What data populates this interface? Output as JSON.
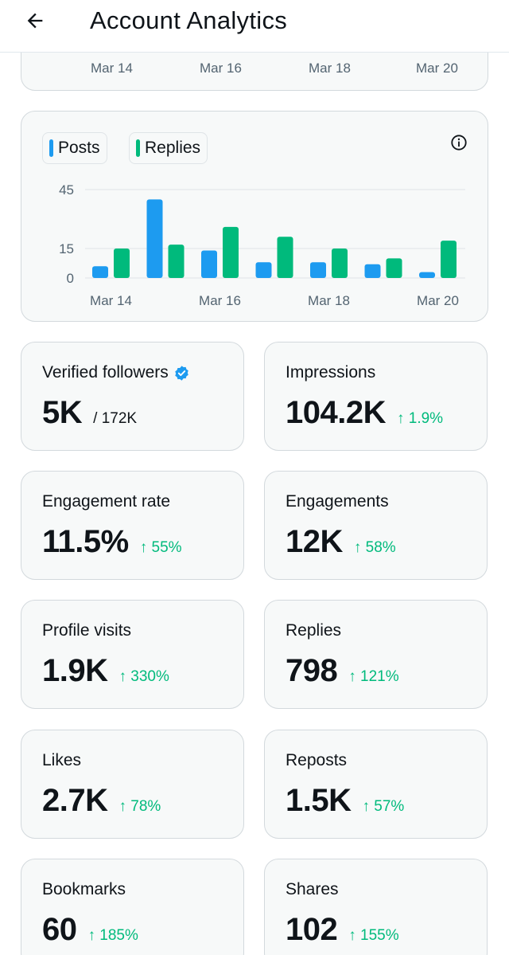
{
  "header": {
    "title": "Account Analytics"
  },
  "top_chart_axis": [
    "Mar 14",
    "Mar 16",
    "Mar 18",
    "Mar 20"
  ],
  "legend": [
    {
      "label": "Posts",
      "color": "#1d9bf0"
    },
    {
      "label": "Replies",
      "color": "#00ba7c"
    }
  ],
  "chart_data": {
    "type": "bar",
    "categories": [
      "Mar 14",
      "Mar 15",
      "Mar 16",
      "Mar 17",
      "Mar 18",
      "Mar 19",
      "Mar 20"
    ],
    "x_tick_labels": [
      "Mar 14",
      "Mar 16",
      "Mar 18",
      "Mar 20"
    ],
    "series": [
      {
        "name": "Posts",
        "color": "#1d9bf0",
        "values": [
          6,
          40,
          14,
          8,
          8,
          7,
          3
        ]
      },
      {
        "name": "Replies",
        "color": "#00ba7c",
        "values": [
          15,
          17,
          26,
          21,
          15,
          10,
          19
        ]
      }
    ],
    "y_ticks": [
      0,
      15,
      45
    ],
    "ylim": [
      0,
      45
    ],
    "grid": true
  },
  "metrics": [
    {
      "title": "Verified followers",
      "value": "5K",
      "sub": "/ 172K",
      "change": "",
      "verified": true
    },
    {
      "title": "Impressions",
      "value": "104.2K",
      "sub": "",
      "change": "↑ 1.9%",
      "verified": false
    },
    {
      "title": "Engagement rate",
      "value": "11.5%",
      "sub": "",
      "change": "↑ 55%",
      "verified": false
    },
    {
      "title": "Engagements",
      "value": "12K",
      "sub": "",
      "change": "↑ 58%",
      "verified": false
    },
    {
      "title": "Profile visits",
      "value": "1.9K",
      "sub": "",
      "change": "↑ 330%",
      "verified": false
    },
    {
      "title": "Replies",
      "value": "798",
      "sub": "",
      "change": "↑ 121%",
      "verified": false
    },
    {
      "title": "Likes",
      "value": "2.7K",
      "sub": "",
      "change": "↑ 78%",
      "verified": false
    },
    {
      "title": "Reposts",
      "value": "1.5K",
      "sub": "",
      "change": "↑ 57%",
      "verified": false
    },
    {
      "title": "Bookmarks",
      "value": "60",
      "sub": "",
      "change": "↑ 185%",
      "verified": false
    },
    {
      "title": "Shares",
      "value": "102",
      "sub": "",
      "change": "↑ 155%",
      "verified": false
    }
  ]
}
